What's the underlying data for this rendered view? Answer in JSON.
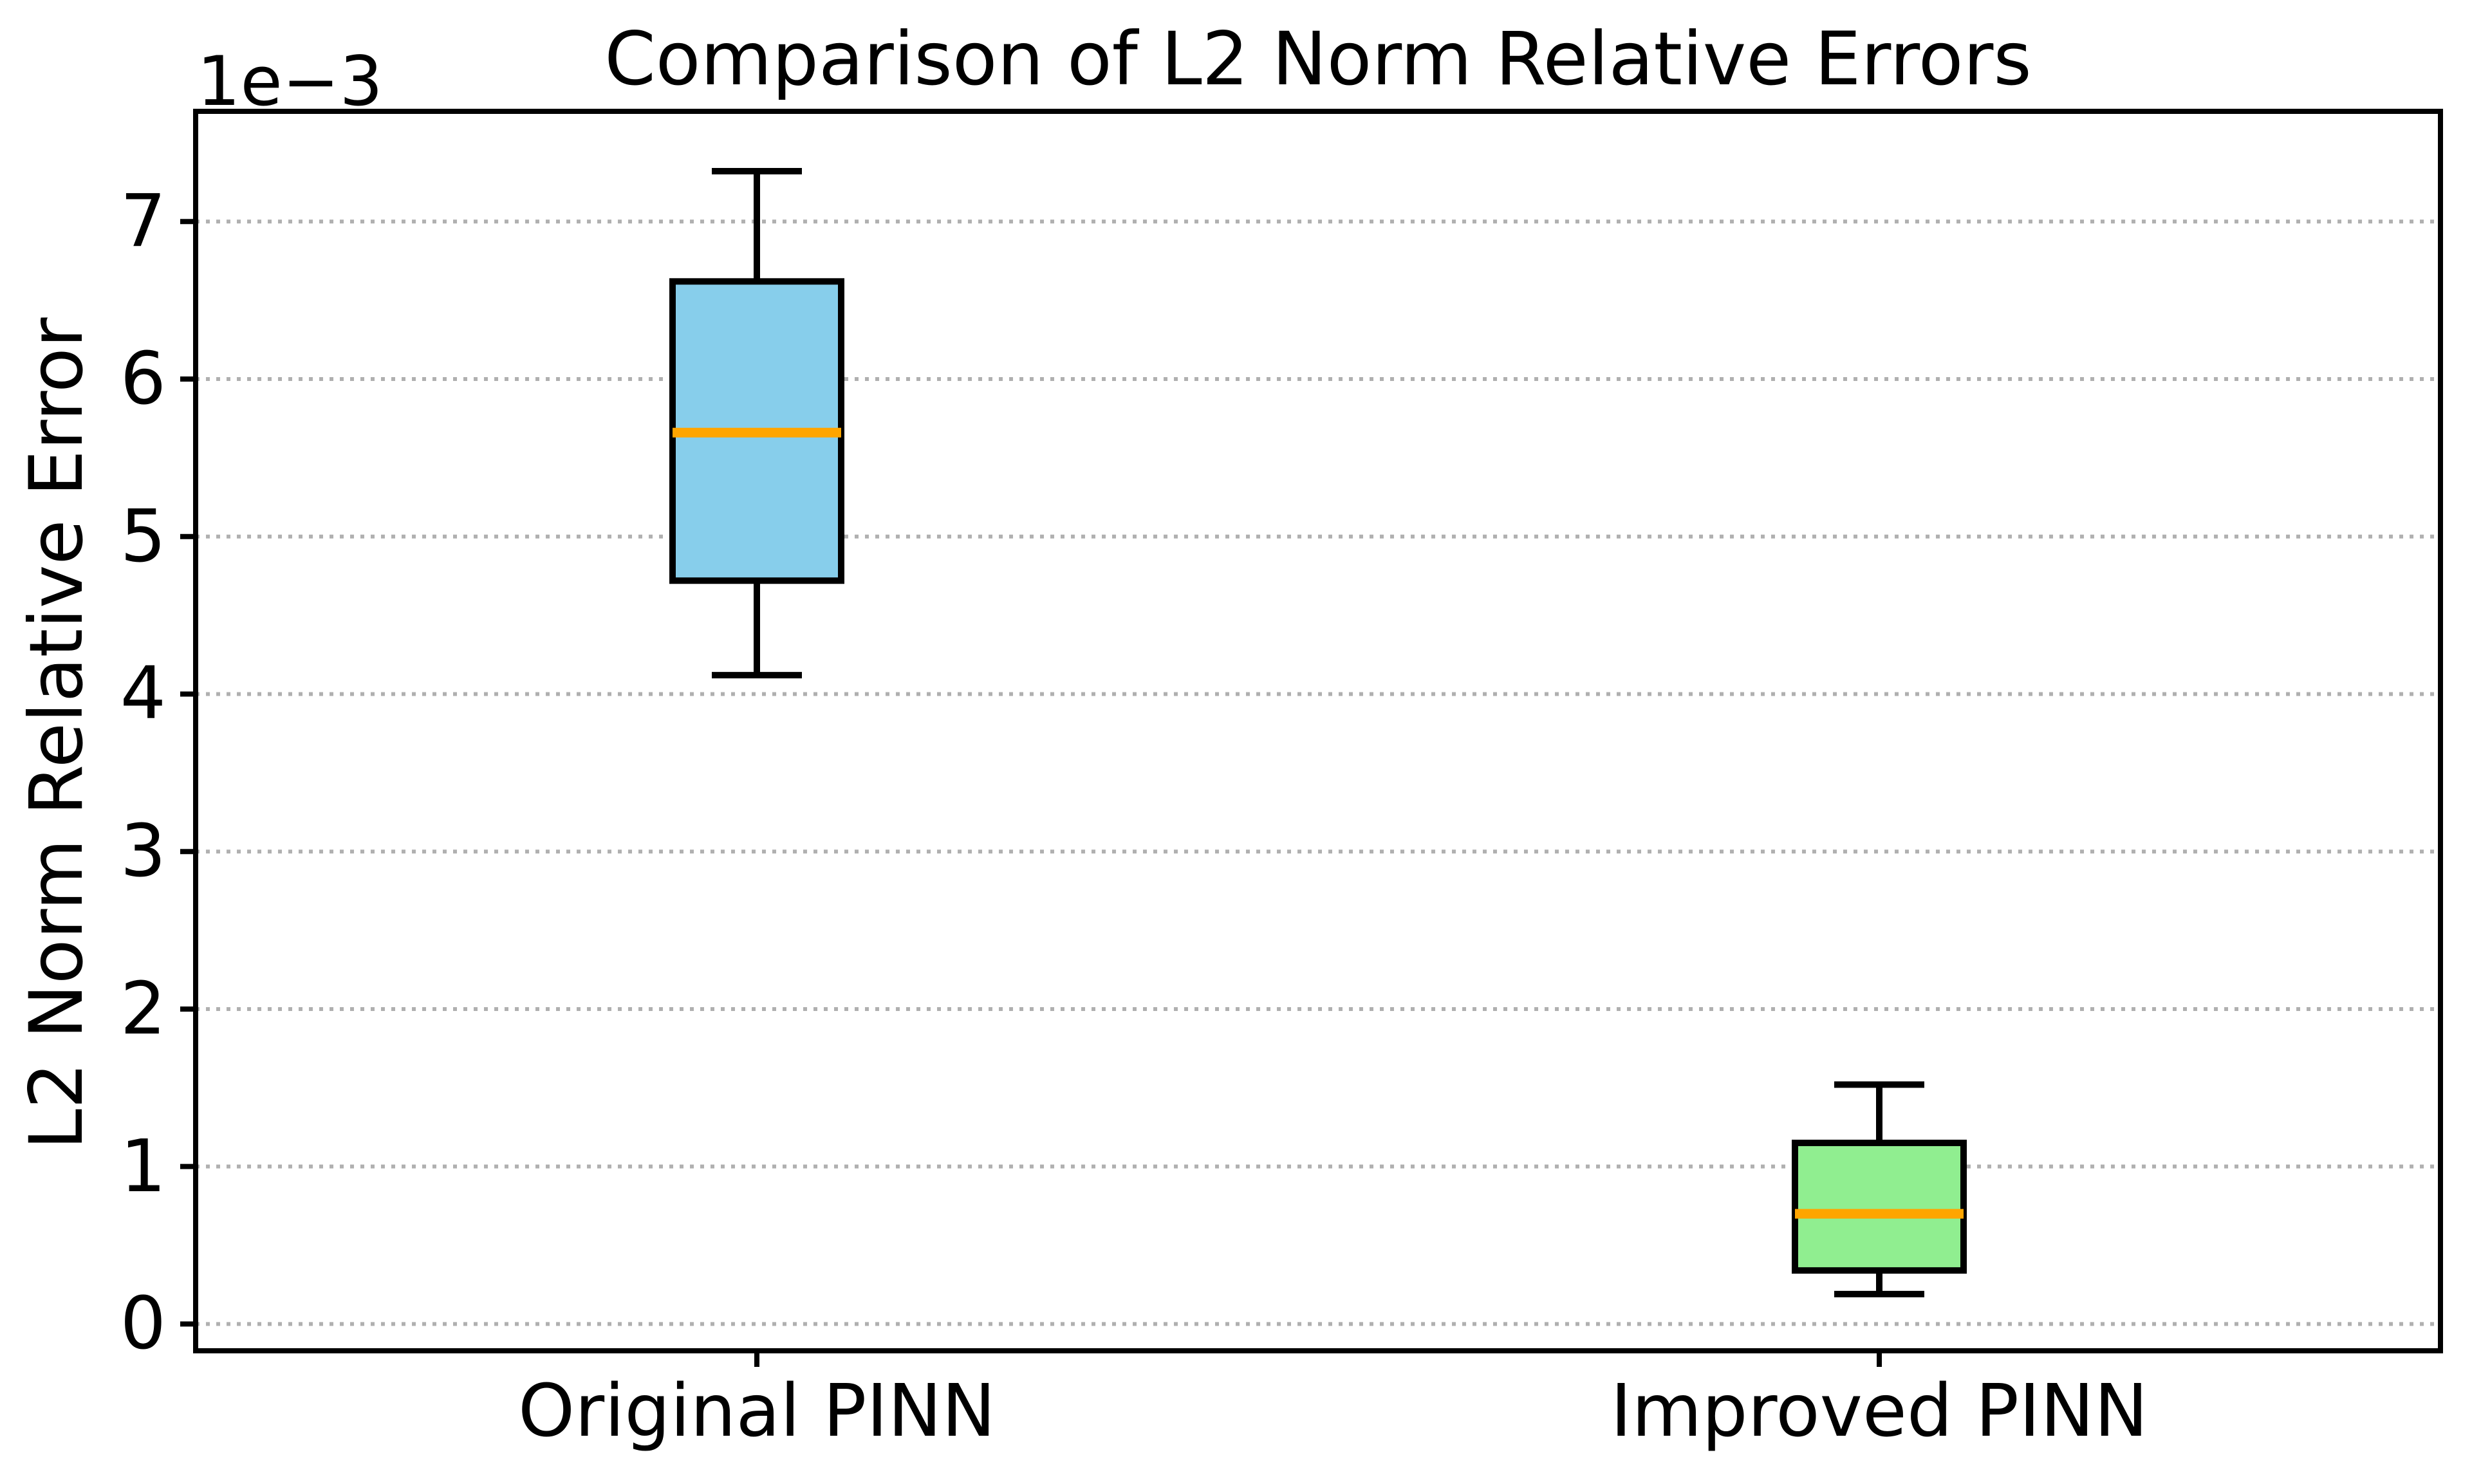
{
  "figure": {
    "offset_label": "1e−3",
    "background_color": "#ffffff"
  },
  "chart_data": {
    "type": "boxplot",
    "title": "Comparison of L2 Norm Relative Errors",
    "xlabel": "",
    "ylabel": "L2 Norm Relative Error",
    "y_unit_multiplier": "1e-3",
    "y_offset_text": "1e−3",
    "categories": [
      "Original PINN",
      "Improved PINN"
    ],
    "yticks": [
      0,
      1,
      2,
      3,
      4,
      5,
      6,
      7
    ],
    "ylim": [
      -0.17,
      7.7
    ],
    "grid": "horizontal dotted",
    "legend": "none",
    "series": [
      {
        "name": "Original PINN",
        "whisker_low": 4.12,
        "q1": 4.72,
        "median": 5.66,
        "q3": 6.62,
        "whisker_high": 7.32,
        "box_fill_color": "#87CEEB"
      },
      {
        "name": "Improved PINN",
        "whisker_low": 0.19,
        "q1": 0.34,
        "median": 0.7,
        "q3": 1.15,
        "whisker_high": 1.52,
        "box_fill_color": "#90EE90"
      }
    ],
    "colors": {
      "median_line": "#FFA500",
      "box_edge": "#000000",
      "whisker": "#000000",
      "grid_line": "#b0b0b0",
      "axis": "#000000"
    }
  }
}
